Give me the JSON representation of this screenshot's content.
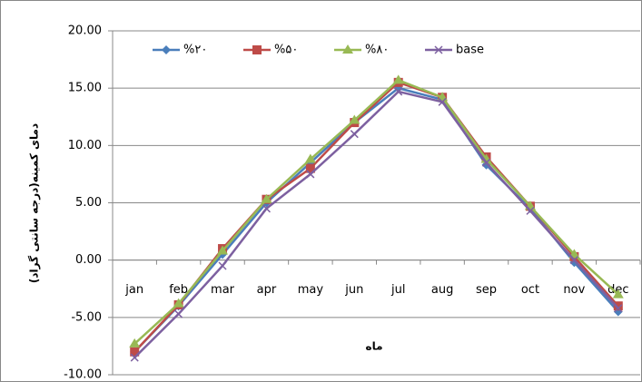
{
  "chart_data": {
    "type": "line",
    "y_label": "دمای کمینه(درجه سانتی گراد)",
    "x_label": "ماه",
    "categories": [
      "jan",
      "feb",
      "mar",
      "apr",
      "may",
      "jun",
      "jul",
      "aug",
      "sep",
      "oct",
      "nov",
      "dec"
    ],
    "series": [
      {
        "name": "%۲۰",
        "color": "#4a7ebb",
        "marker": "diamond",
        "values": [
          -8,
          -4,
          0.5,
          5,
          8.5,
          12,
          15,
          14,
          8.3,
          4.5,
          -0.2,
          -4.5
        ]
      },
      {
        "name": "%۵۰",
        "color": "#be4b48",
        "marker": "square",
        "values": [
          -8,
          -3.9,
          1,
          5.3,
          8,
          12,
          15.5,
          14.2,
          9,
          4.7,
          0.3,
          -4
        ]
      },
      {
        "name": "%۸۰",
        "color": "#98b954",
        "marker": "triangle",
        "values": [
          -7.3,
          -3.8,
          0.8,
          5.3,
          8.8,
          12.2,
          15.7,
          14.2,
          8.8,
          4.7,
          0.5,
          -3
        ]
      },
      {
        "name": "base",
        "color": "#7d60a0",
        "marker": "x",
        "values": [
          -8.5,
          -4.7,
          -0.5,
          4.5,
          7.5,
          11,
          14.7,
          13.8,
          8.5,
          4.3,
          0,
          -4.2
        ]
      }
    ],
    "ylim": [
      -10,
      20
    ],
    "yticks": [
      {
        "value": -10,
        "label": "-10.00"
      },
      {
        "value": -5,
        "label": "-5.00"
      },
      {
        "value": 0,
        "label": "0.00"
      },
      {
        "value": 5,
        "label": "5.00"
      },
      {
        "value": 10,
        "label": "10.00"
      },
      {
        "value": 15,
        "label": "15.00"
      },
      {
        "value": 20,
        "label": "20.00"
      }
    ],
    "grid": true,
    "legend": "top"
  }
}
